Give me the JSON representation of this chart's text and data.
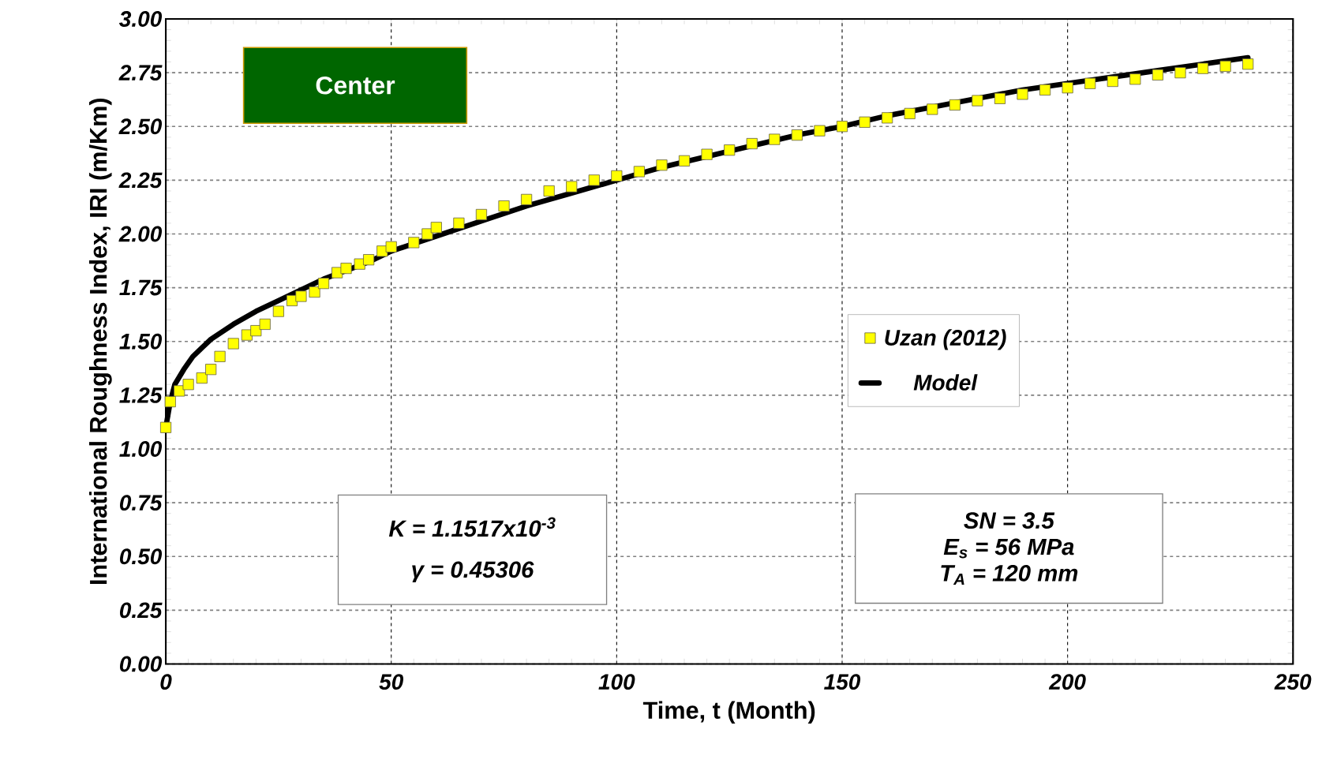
{
  "chart_data": {
    "type": "line",
    "xlabel": "Time, t (Month)",
    "ylabel": "International Roughness Index, IRI (m/Km)",
    "xlim": [
      0,
      250
    ],
    "xticks": [
      0,
      50,
      100,
      150,
      200,
      250
    ],
    "ylim": [
      0,
      3
    ],
    "yticks": [
      {
        "value": 0,
        "label": "0.00"
      },
      {
        "value": 0.25,
        "label": "0.25"
      },
      {
        "value": 0.5,
        "label": "0.50"
      },
      {
        "value": 0.75,
        "label": "0.75"
      },
      {
        "value": 1,
        "label": "1.00"
      },
      {
        "value": 1.25,
        "label": "1.25"
      },
      {
        "value": 1.5,
        "label": "1.50"
      },
      {
        "value": 1.75,
        "label": "1.75"
      },
      {
        "value": 2,
        "label": "2.00"
      },
      {
        "value": 2.25,
        "label": "2.25"
      },
      {
        "value": 2.5,
        "label": "2.50"
      },
      {
        "value": 2.75,
        "label": "2.75"
      },
      {
        "value": 3,
        "label": "3.00"
      }
    ],
    "grid": true,
    "legend": "right",
    "annotations": [
      "Center",
      "K = 1.1517x10$^{-3}$",
      "γ = 0.45306",
      "SN = 3.5",
      "E$_{s}$ = 56 MPa",
      "T$_{A}$ = 120 mm"
    ],
    "series": [
      {
        "name": "Model",
        "color": "#000000",
        "marker": "none",
        "line_style": "solid",
        "x": [
          0,
          1,
          2,
          4,
          6,
          8,
          10,
          15,
          20,
          25,
          30,
          35,
          40,
          45,
          50,
          60,
          70,
          80,
          90,
          100,
          110,
          120,
          130,
          140,
          150,
          160,
          170,
          180,
          190,
          200,
          210,
          220,
          230,
          240
        ],
        "values": [
          1.1,
          1.22,
          1.3,
          1.37,
          1.43,
          1.47,
          1.51,
          1.58,
          1.64,
          1.69,
          1.74,
          1.79,
          1.83,
          1.87,
          1.92,
          1.99,
          2.06,
          2.13,
          2.19,
          2.25,
          2.31,
          2.36,
          2.41,
          2.46,
          2.5,
          2.55,
          2.59,
          2.63,
          2.67,
          2.7,
          2.73,
          2.76,
          2.79,
          2.82
        ]
      },
      {
        "name": "Uzan (2012)",
        "type": "scatter",
        "color": "#ffff00",
        "marker": "square",
        "x": [
          0,
          1,
          3,
          5,
          8,
          10,
          12,
          15,
          18,
          20,
          22,
          25,
          28,
          30,
          33,
          35,
          38,
          40,
          43,
          45,
          48,
          50,
          55,
          58,
          60,
          65,
          70,
          75,
          80,
          85,
          90,
          95,
          100,
          105,
          110,
          115,
          120,
          125,
          130,
          135,
          140,
          145,
          150,
          155,
          160,
          165,
          170,
          175,
          180,
          185,
          190,
          195,
          200,
          205,
          210,
          215,
          220,
          225,
          230,
          235,
          240
        ],
        "values": [
          1.1,
          1.22,
          1.27,
          1.3,
          1.33,
          1.37,
          1.43,
          1.49,
          1.53,
          1.55,
          1.58,
          1.64,
          1.69,
          1.71,
          1.73,
          1.77,
          1.82,
          1.84,
          1.86,
          1.88,
          1.92,
          1.94,
          1.96,
          2.0,
          2.03,
          2.05,
          2.09,
          2.13,
          2.16,
          2.2,
          2.22,
          2.25,
          2.27,
          2.29,
          2.32,
          2.34,
          2.37,
          2.39,
          2.42,
          2.44,
          2.46,
          2.48,
          2.5,
          2.52,
          2.54,
          2.56,
          2.58,
          2.6,
          2.62,
          2.63,
          2.65,
          2.67,
          2.68,
          2.7,
          2.71,
          2.72,
          2.74,
          2.75,
          2.77,
          2.78,
          2.79
        ]
      }
    ]
  }
}
